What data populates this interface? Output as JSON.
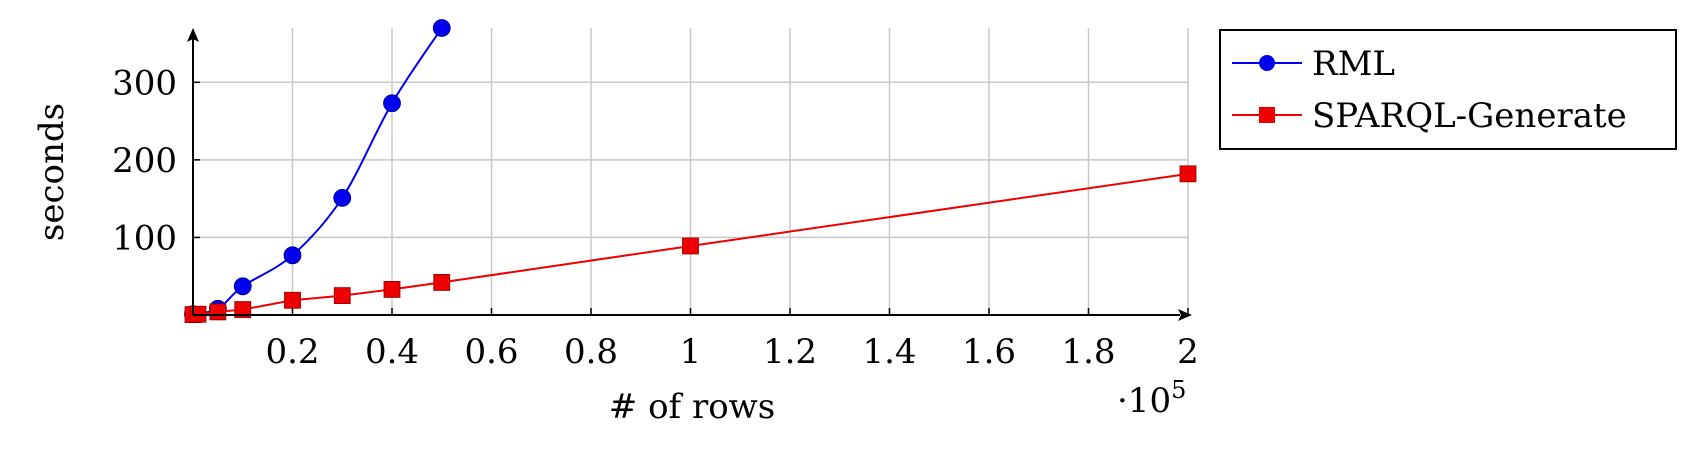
{
  "chart_data": {
    "type": "line",
    "title": "",
    "xlabel": "# of rows",
    "ylabel": "seconds",
    "x_exponent_label": "·10",
    "x_exponent_power": "5",
    "xlim": [
      0,
      2
    ],
    "ylim": [
      0,
      370
    ],
    "xticks": [
      0.2,
      0.4,
      0.6,
      0.8,
      1,
      1.2,
      1.4,
      1.6,
      1.8,
      2
    ],
    "xtick_labels": [
      "0.2",
      "0.4",
      "0.6",
      "0.8",
      "1",
      "1.2",
      "1.4",
      "1.6",
      "1.8",
      "2"
    ],
    "yticks": [
      100,
      200,
      300
    ],
    "ytick_labels": [
      "100",
      "200",
      "300"
    ],
    "grid": true,
    "legend_position": "outside-top-right",
    "series": [
      {
        "name": "RML",
        "color": "#0000ee",
        "marker": "circle",
        "smooth": true,
        "x": [
          0,
          0.05,
          0.1,
          0.2,
          0.3,
          0.4,
          0.5
        ],
        "y": [
          1,
          8,
          37,
          77,
          151,
          273,
          370
        ]
      },
      {
        "name": "SPARQL-Generate",
        "color": "#ee0000",
        "marker": "square",
        "smooth": false,
        "x": [
          0,
          0.01,
          0.05,
          0.1,
          0.2,
          0.3,
          0.4,
          0.5,
          1,
          2
        ],
        "y": [
          0.5,
          1,
          4,
          7,
          19,
          25,
          33,
          42,
          89,
          182
        ]
      }
    ]
  }
}
